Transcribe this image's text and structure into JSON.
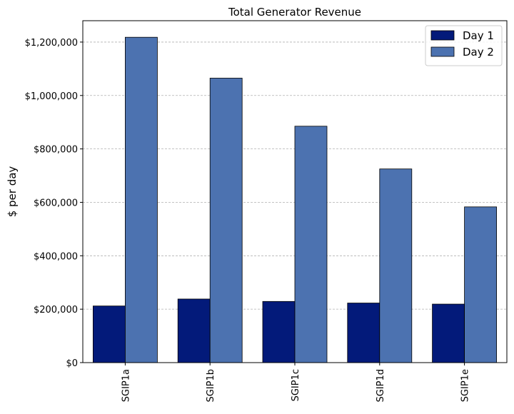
{
  "chart_data": {
    "type": "bar",
    "title": "Total Generator Revenue",
    "xlabel": "",
    "ylabel": "$ per day",
    "categories": [
      "SGIP1a",
      "SGIP1b",
      "SGIP1c",
      "SGIP1d",
      "SGIP1e"
    ],
    "series": [
      {
        "name": "Day 1",
        "color": "#031a7a",
        "values": [
          212000,
          238000,
          229000,
          223000,
          219000
        ]
      },
      {
        "name": "Day 2",
        "color": "#4c72b0",
        "values": [
          1218000,
          1065000,
          885000,
          725000,
          583000
        ]
      }
    ],
    "ylim": [
      0,
      1280000
    ],
    "yticks": [
      0,
      200000,
      400000,
      600000,
      800000,
      1000000,
      1200000
    ],
    "ytick_labels": [
      "$0",
      "$200,000",
      "$400,000",
      "$600,000",
      "$800,000",
      "$1,000,000",
      "$1,200,000"
    ],
    "grid": "y-dashed",
    "legend": "top-right"
  }
}
